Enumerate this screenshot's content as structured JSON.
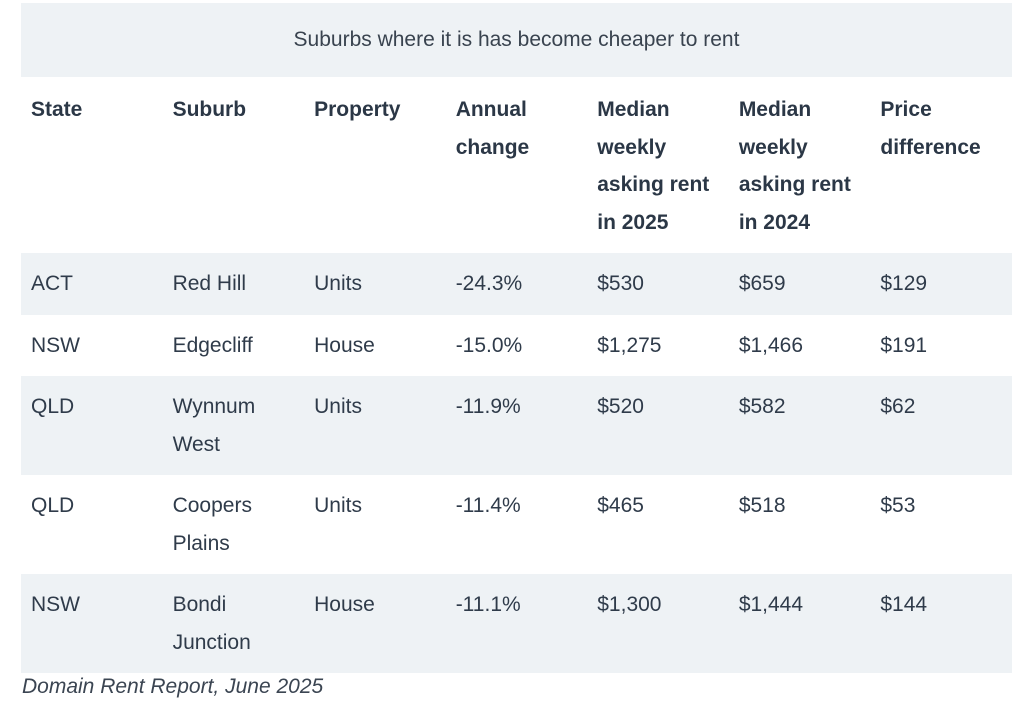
{
  "table": {
    "caption": "Suburbs where it is has become cheaper to rent",
    "headers": [
      "State",
      "Suburb",
      "Property",
      "Annual change",
      "Median weekly asking rent in 2025",
      "Median weekly asking rent in 2024",
      "Price difference"
    ],
    "rows": [
      [
        "ACT",
        "Red Hill",
        "Units",
        "-24.3%",
        "$530",
        "$659",
        "$129"
      ],
      [
        "NSW",
        "Edgecliff",
        "House",
        "-15.0%",
        "$1,275",
        "$1,466",
        "$191"
      ],
      [
        "QLD",
        "Wynnum West",
        "Units",
        "-11.9%",
        "$520",
        "$582",
        "$62"
      ],
      [
        "QLD",
        "Coopers Plains",
        "Units",
        "-11.4%",
        "$465",
        "$518",
        "$53"
      ],
      [
        "NSW",
        "Bondi Junction",
        "House",
        "-11.1%",
        "$1,300",
        "$1,444",
        "$144"
      ]
    ]
  },
  "source": "Domain Rent Report, June 2025"
}
